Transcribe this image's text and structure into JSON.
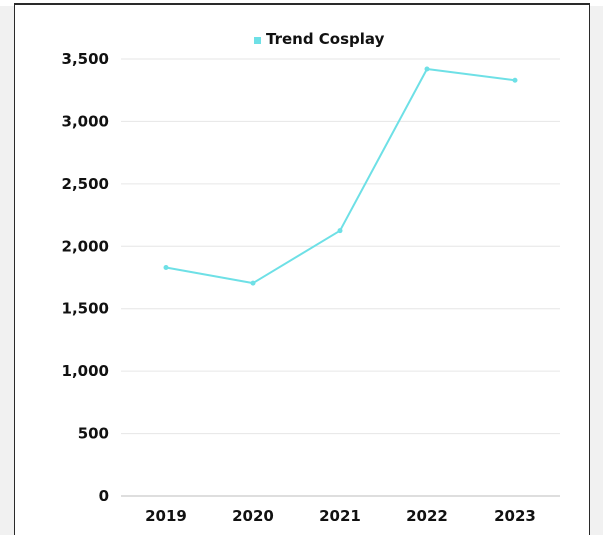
{
  "chart_data": {
    "type": "line",
    "categories": [
      "2019",
      "2020",
      "2021",
      "2022",
      "2023"
    ],
    "series": [
      {
        "name": "Trend Cosplay",
        "values": [
          1830,
          1705,
          2125,
          3420,
          3330
        ],
        "color": "#6ee0e6"
      }
    ],
    "y_ticks": [
      "0",
      "500",
      "1,000",
      "1,500",
      "2,000",
      "2,500",
      "3,000",
      "3,500"
    ],
    "y_tick_values": [
      0,
      500,
      1000,
      1500,
      2000,
      2500,
      3000,
      3500
    ],
    "ylim": [
      0,
      3500
    ],
    "grid": true,
    "legend": "top-center"
  },
  "colors": {
    "series": "#6ee0e6",
    "grid": "#e6e6e6",
    "axis": "#bdbdbd",
    "text": "#111111"
  }
}
